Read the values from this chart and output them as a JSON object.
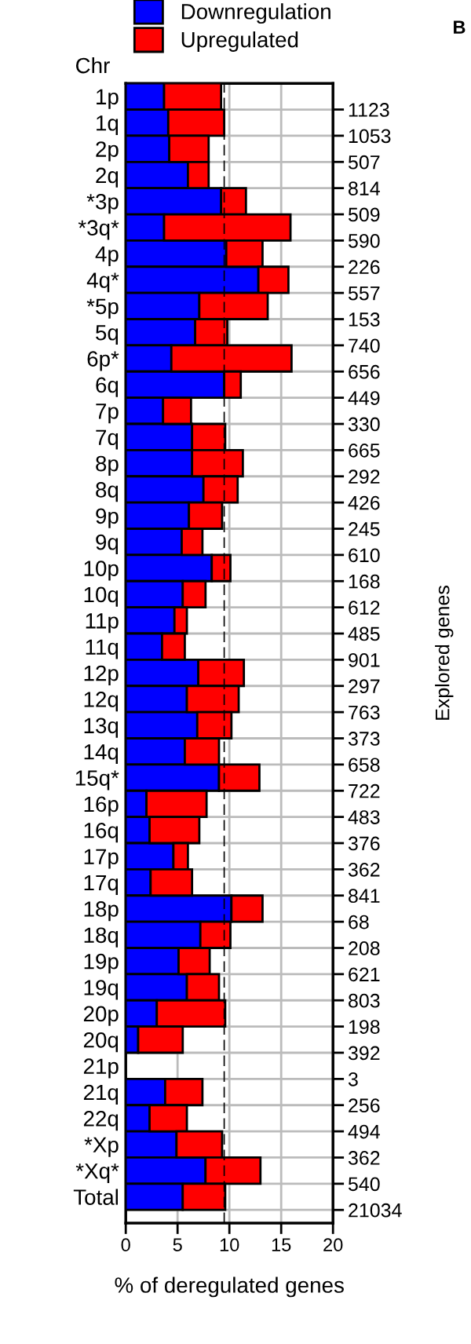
{
  "chart_data": {
    "type": "bar",
    "orientation": "horizontal",
    "stacked": true,
    "ylabel": "Chr",
    "xlabel": "% of deregulated genes",
    "y2label": "Explored genes",
    "annotations": [
      "B"
    ],
    "categories": [
      "1p",
      "1q",
      "2p",
      "2q",
      "*3p",
      "*3q*",
      "4p",
      "4q*",
      "*5p",
      "5q",
      "6p*",
      "6q",
      "7p",
      "7q",
      "8p",
      "8q",
      "9p",
      "9q",
      "10p",
      "10q",
      "11p",
      "11q",
      "12p",
      "12q",
      "13q",
      "14q",
      "15q*",
      "16p",
      "16q",
      "17p",
      "17q",
      "18p",
      "18q",
      "19p",
      "19q",
      "20p",
      "20q",
      "21p",
      "21q",
      "22q",
      "*Xp",
      "*Xq*",
      "Total"
    ],
    "y2_categories": [
      "1123",
      "1053",
      "507",
      "814",
      "509",
      "590",
      "226",
      "557",
      "153",
      "740",
      "656",
      "449",
      "330",
      "665",
      "292",
      "426",
      "245",
      "610",
      "168",
      "612",
      "485",
      "901",
      "297",
      "763",
      "373",
      "658",
      "722",
      "483",
      "376",
      "362",
      "841",
      "68",
      "208",
      "621",
      "803",
      "198",
      "392",
      "3",
      "256",
      "494",
      "362",
      "540",
      "21034"
    ],
    "series": [
      {
        "name": "Downregulation",
        "color": "#0000ff",
        "values": [
          3.7,
          4.1,
          4.2,
          6.0,
          9.2,
          3.7,
          9.7,
          12.8,
          7.1,
          6.7,
          4.4,
          9.5,
          3.6,
          6.4,
          6.4,
          7.5,
          6.1,
          5.4,
          8.3,
          5.5,
          4.7,
          3.5,
          7.0,
          5.9,
          6.9,
          5.7,
          9.0,
          2.0,
          2.3,
          4.6,
          2.4,
          10.2,
          7.2,
          5.1,
          5.9,
          3.0,
          1.2,
          null,
          3.8,
          2.3,
          4.9,
          7.7,
          5.5
        ]
      },
      {
        "name": "Upregulated",
        "color": "#ff0000",
        "values": [
          5.5,
          5.4,
          3.8,
          2.0,
          2.4,
          12.2,
          3.5,
          2.9,
          6.6,
          3.1,
          11.6,
          1.6,
          2.7,
          3.2,
          4.9,
          3.3,
          3.2,
          2.0,
          1.8,
          2.2,
          1.2,
          2.2,
          4.4,
          5.0,
          3.3,
          3.3,
          3.9,
          5.8,
          4.8,
          1.4,
          4.0,
          3.0,
          2.9,
          3.0,
          3.1,
          6.6,
          4.3,
          null,
          3.6,
          3.6,
          4.4,
          5.3,
          4.1
        ]
      }
    ],
    "xlim": [
      0,
      20
    ],
    "xticks": [
      0,
      5,
      10,
      15,
      20
    ],
    "ref_lines": [
      {
        "axis": "x",
        "value": 9.5,
        "label": null,
        "color": "#000000",
        "line_style": "dashed"
      }
    ],
    "grid": true,
    "legend": "top"
  }
}
